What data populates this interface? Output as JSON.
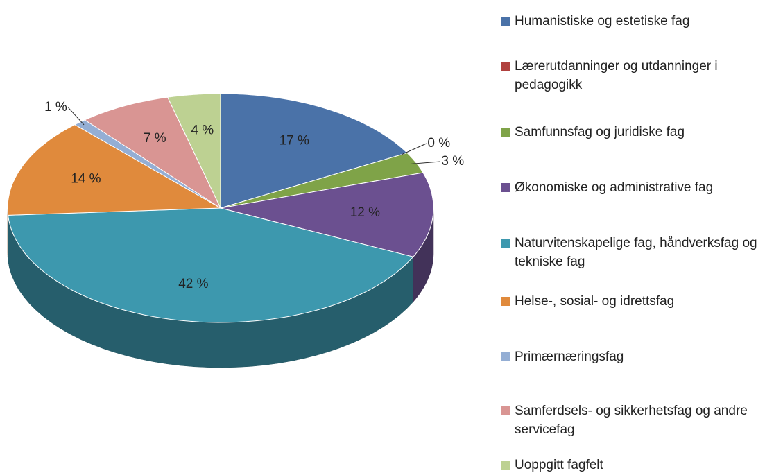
{
  "chart_data": {
    "type": "pie3d",
    "categories": [
      "Humanistiske og estetiske fag",
      "Lærerutdanninger og utdanninger i pedagogikk",
      "Samfunnsfag og juridiske fag",
      "Økonomiske og administrative fag",
      "Naturvitenskapelige fag, håndverksfag og tekniske fag",
      "Helse-, sosial- og idrettsfag",
      "Primærnæringsfag",
      "Samferdsels- og sikkerhetsfag og andre servicefag",
      "Uoppgitt fagfelt"
    ],
    "values": [
      17,
      0,
      3,
      12,
      42,
      14,
      1,
      7,
      4
    ],
    "value_labels": [
      "17 %",
      "0 %",
      "3 %",
      "12 %",
      "42 %",
      "14 %",
      "1 %",
      "7 %",
      "4 %"
    ],
    "colors": [
      "#4a72a8",
      "#b0413e",
      "#7fa348",
      "#6b5090",
      "#3d98ae",
      "#e08a3c",
      "#94aed4",
      "#d99593",
      "#bdd192"
    ],
    "legend": "right"
  }
}
